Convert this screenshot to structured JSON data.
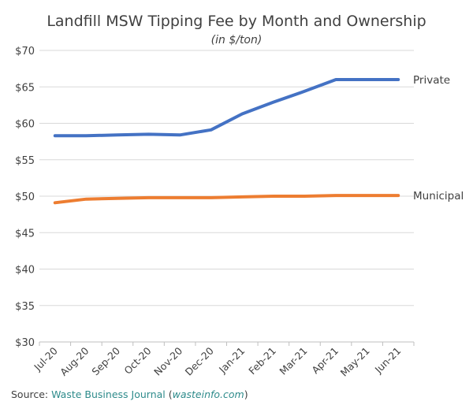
{
  "chart_data": {
    "type": "line",
    "title": "Landfill MSW Tipping Fee by Month and Ownership",
    "subtitle": "(in $/ton)",
    "categories": [
      "Jul-20",
      "Aug-20",
      "Sep-20",
      "Oct-20",
      "Nov-20",
      "Dec-20",
      "Jan-21",
      "Feb-21",
      "Mar-21",
      "Apr-21",
      "May-21",
      "Jun-21"
    ],
    "series": [
      {
        "name": "Private",
        "color": "#4472C4",
        "values": [
          58.3,
          58.3,
          58.4,
          58.5,
          58.4,
          59.1,
          61.3,
          62.9,
          64.4,
          66.0,
          66.0,
          66.0
        ]
      },
      {
        "name": "Municipal",
        "color": "#ED7D31",
        "values": [
          49.1,
          49.6,
          49.7,
          49.8,
          49.8,
          49.8,
          49.9,
          50.0,
          50.0,
          50.1,
          50.1,
          50.1
        ]
      }
    ],
    "ylim": [
      30,
      70
    ],
    "yticks": [
      30,
      35,
      40,
      45,
      50,
      55,
      60,
      65,
      70
    ],
    "ytick_labels": [
      "$30",
      "$35",
      "$40",
      "$45",
      "$50",
      "$55",
      "$60",
      "$65",
      "$70"
    ],
    "grid": true,
    "legend": "inline-right"
  },
  "source": {
    "prefix": "Source: ",
    "name": "Waste Business Journal",
    "open": " (",
    "site": "wasteinfo.com",
    "close": ")"
  }
}
